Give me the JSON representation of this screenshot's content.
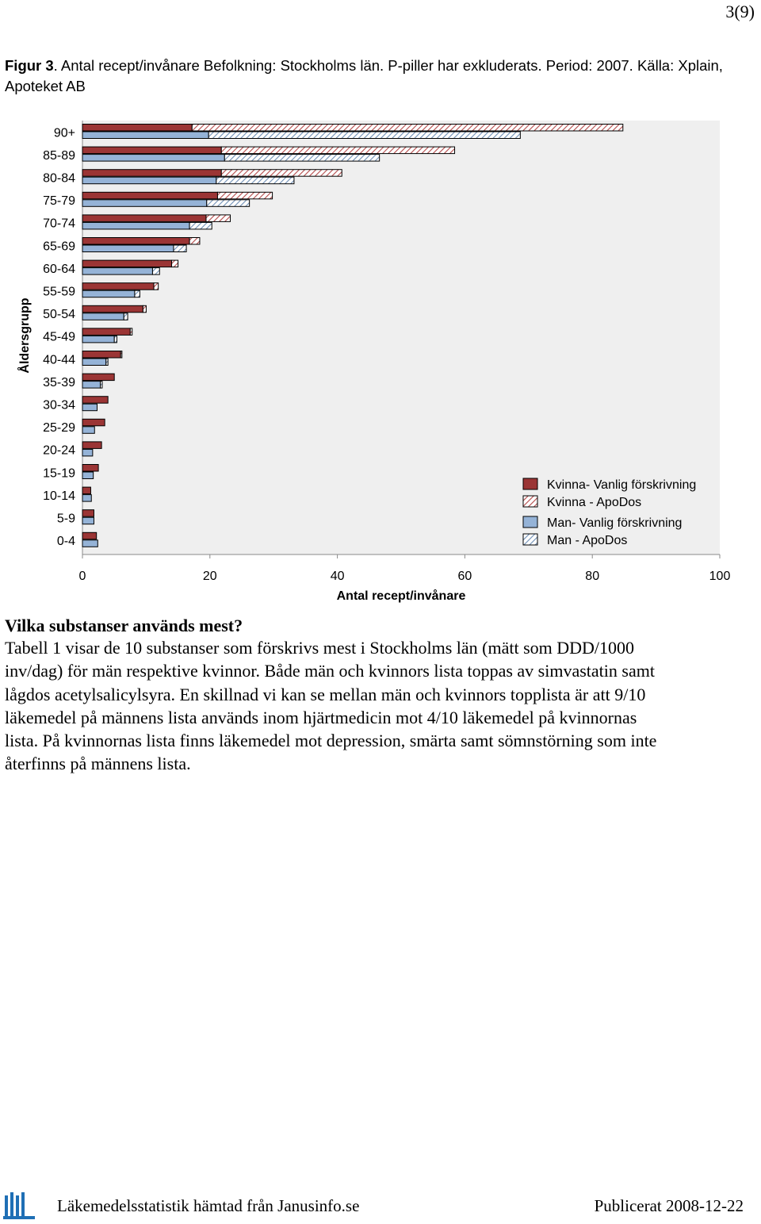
{
  "page": {
    "number": "3(9)"
  },
  "caption": {
    "label": "Figur 3",
    "text": ". Antal recept/invånare Befolkning: Stockholms län. P-piller har exkluderats. Period: 2007. Källa: Xplain, Apoteket AB"
  },
  "colors": {
    "kvinna": "#9b3535",
    "man": "#95b3d7",
    "plot_bg": "#efefef",
    "hatch_line": "#b44a4a",
    "hatch_line_man": "#6f8fb5"
  },
  "chart_data": {
    "type": "bar",
    "orientation": "horizontal",
    "stacked": true,
    "ylabel": "Åldersgrupp",
    "xlabel": "Antal recept/invånare",
    "xlim": [
      0,
      100
    ],
    "xticks": [
      "0",
      "20",
      "40",
      "60",
      "80",
      "100"
    ],
    "categories": [
      "90+",
      "85-89",
      "80-84",
      "75-79",
      "70-74",
      "65-69",
      "60-64",
      "55-59",
      "50-54",
      "45-49",
      "40-44",
      "35-39",
      "30-34",
      "25-29",
      "20-24",
      "15-19",
      "10-14",
      "5-9",
      "0-4"
    ],
    "legend_position": "bottom-right",
    "grid": false,
    "series": [
      {
        "name": "Kvinna- Vanlig förskrivning",
        "group": "kvinna",
        "pattern": "solid",
        "values": [
          17.2,
          21.8,
          21.8,
          21.2,
          19.4,
          16.8,
          14.0,
          11.2,
          9.5,
          7.5,
          6.0,
          5.0,
          4.0,
          3.5,
          3.0,
          2.5,
          1.3,
          1.8,
          2.2
        ]
      },
      {
        "name": "Kvinna - ApoDos",
        "group": "kvinna",
        "pattern": "hatch",
        "values": [
          67.6,
          36.6,
          18.9,
          8.6,
          3.8,
          1.6,
          1.0,
          0.7,
          0.5,
          0.3,
          0.2,
          0,
          0,
          0,
          0,
          0,
          0,
          0,
          0
        ]
      },
      {
        "name": "Man- Vanlig förskrivning",
        "group": "man",
        "pattern": "solid",
        "values": [
          19.8,
          22.3,
          21.0,
          19.5,
          16.8,
          14.3,
          11.0,
          8.2,
          6.5,
          5.0,
          3.7,
          2.8,
          2.3,
          1.9,
          1.6,
          1.7,
          1.4,
          1.8,
          2.4
        ]
      },
      {
        "name": "Man - ApoDos",
        "group": "man",
        "pattern": "hatch",
        "values": [
          48.9,
          24.3,
          12.2,
          6.7,
          3.5,
          2.0,
          1.1,
          0.8,
          0.6,
          0.4,
          0.3,
          0.3,
          0,
          0,
          0,
          0,
          0,
          0,
          0
        ]
      }
    ]
  },
  "section": {
    "heading": "Vilka substanser används mest?",
    "lines": [
      "Tabell 1 visar de 10 substanser som förskrivs mest i Stockholms län (mätt som DDD/1000",
      "inv/dag) för män respektive kvinnor. Både män och kvinnors lista toppas av simvastatin samt",
      "lågdos acetylsalicylsyra. En skillnad vi kan se mellan män och kvinnors topplista är att 9/10",
      "läkemedel på männens lista används inom hjärtmedicin mot 4/10 läkemedel på kvinnornas",
      "lista. På kvinnornas lista finns läkemedel mot depression, smärta samt sömnstörning som inte",
      "återfinns på männens lista."
    ]
  },
  "footer": {
    "source": "Läkemedelsstatistik hämtad från Janusinfo.se",
    "published": "Publicerat 2008-12-22",
    "logo_icon": "janusinfo-logo-icon"
  }
}
